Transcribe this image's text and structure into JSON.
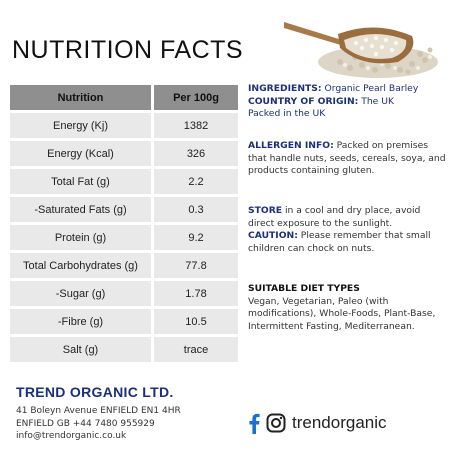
{
  "title": "NUTRITION FACTS",
  "nutrition_table": {
    "header": {
      "col1": "Nutrition",
      "col2": "Per 100g"
    },
    "rows": [
      {
        "name": "Energy (Kj)",
        "value": "1382"
      },
      {
        "name": "Energy (Kcal)",
        "value": "326"
      },
      {
        "name": "Total Fat (g)",
        "value": "2.2"
      },
      {
        "name": "-Saturated Fats (g)",
        "value": "0.3"
      },
      {
        "name": "Protein (g)",
        "value": "9.2"
      },
      {
        "name": "Total Carbohydrates (g)",
        "value": "77.8"
      },
      {
        "name": "-Sugar (g)",
        "value": "1.78"
      },
      {
        "name": "-Fibre (g)",
        "value": "10.5"
      },
      {
        "name": "Salt (g)",
        "value": "trace"
      }
    ]
  },
  "info": {
    "ingredients_label": "INGREDIENTS:",
    "ingredients_value": " Organic Pearl Barley",
    "origin_label": "COUNTRY OF ORIGIN:",
    "origin_value": " The UK",
    "packed": "Packed in the UK",
    "allergen_label": "ALLERGEN INFO:",
    "allergen_value": " Packed on premises that handle nuts, seeds, cereals, soya, and products containing gluten.",
    "store_label": "STORE",
    "store_value": " in a cool and dry place, avoid direct exposure to the  sunlight.",
    "caution_label": "CAUTION:",
    "caution_value": " Please remember that small children can chock on nuts.",
    "diet_label": "SUITABLE DIET TYPES",
    "diet_value": "Vegan, Vegetarian, Paleo (with modifications), Whole-Foods, Plant-Base, Intermittent Fasting, Mediterranean."
  },
  "company": {
    "name": "TREND ORGANIC LTD.",
    "address1": "41 Boleyn Avenue ENFIELD EN1 4HR",
    "address2": "ENFIELD GB  +44 7480 955929",
    "email": "info@trendorganic.co.uk"
  },
  "social": {
    "handle": "trendorganic",
    "icons": [
      "facebook-icon",
      "instagram-icon"
    ],
    "color": "#1b6fd8"
  }
}
